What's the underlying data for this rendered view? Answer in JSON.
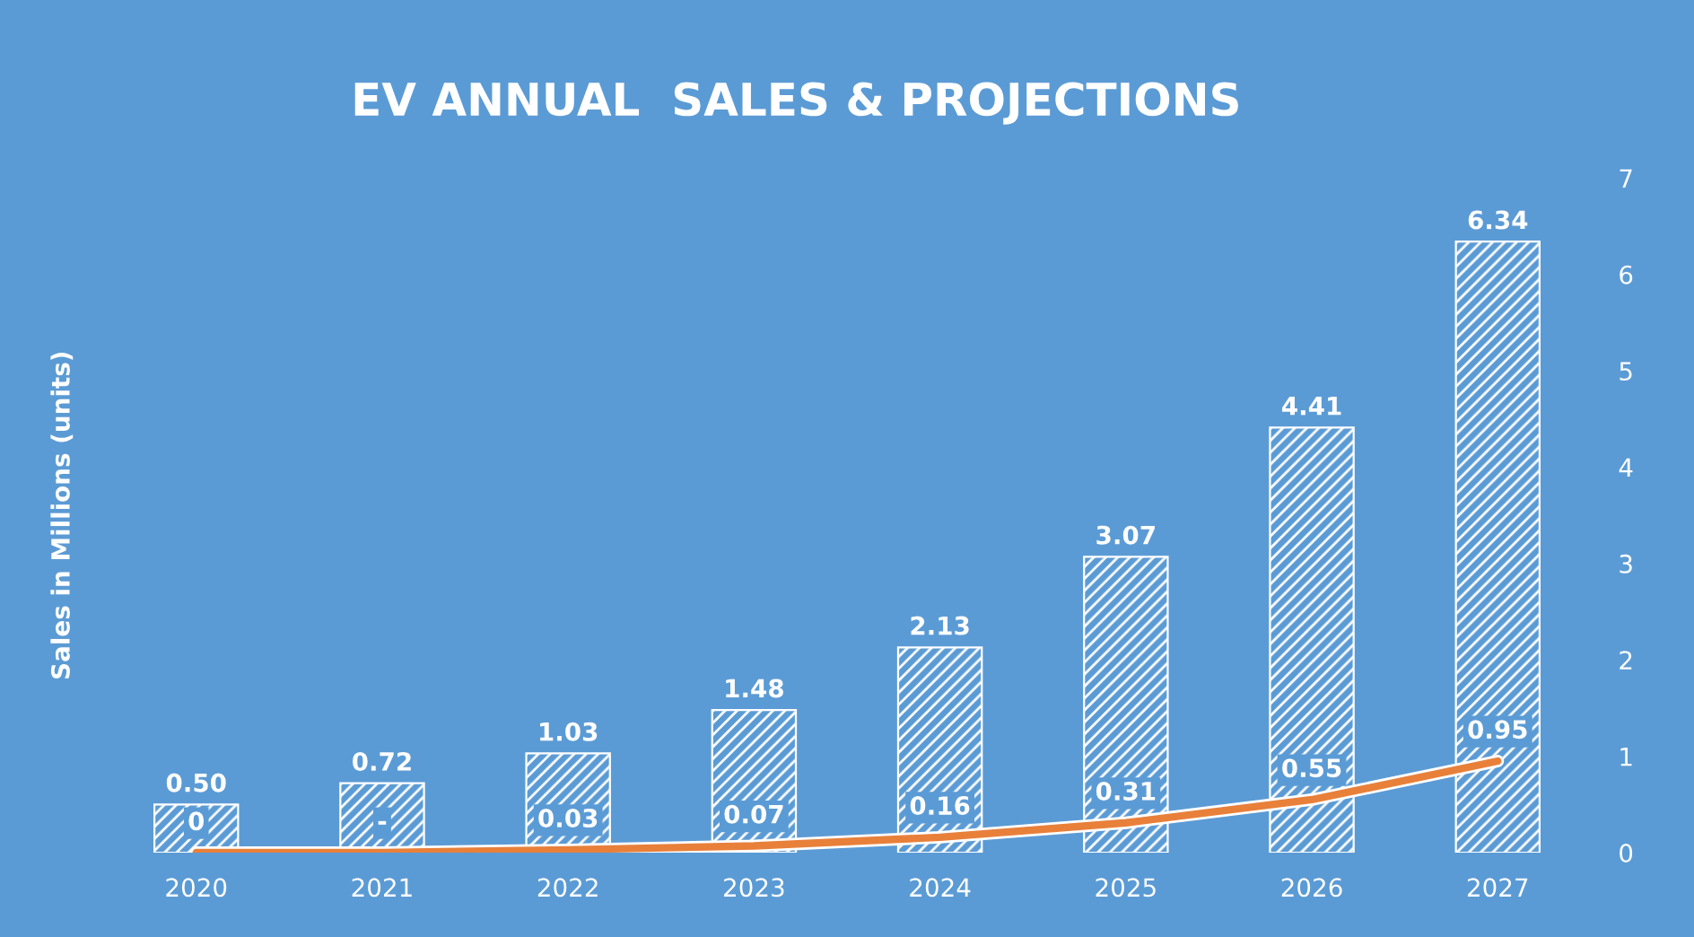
{
  "chart_data": {
    "type": "bar",
    "title": "EV ANNUAL  SALES & PROJECTIONS",
    "ylabel": "Sales in Millions (units)",
    "categories": [
      "2020",
      "2021",
      "2022",
      "2023",
      "2024",
      "2025",
      "2026",
      "2027"
    ],
    "series": [
      {
        "color": "#ffffff",
        "values": [
          0.5,
          0.72,
          1.03,
          1.48,
          2.13,
          3.07,
          4.41,
          6.34
        ],
        "value_labels": [
          "0.50",
          "0.72",
          "1.03",
          "1.48",
          "2.13",
          "3.07",
          "4.41",
          "6.34"
        ]
      },
      {
        "type": "line",
        "color": "#e8803a",
        "values": [
          0,
          0,
          0.03,
          0.07,
          0.16,
          0.31,
          0.55,
          0.95
        ],
        "value_labels": [
          "0",
          "-",
          "0.03",
          "0.07",
          "0.16",
          "0.31",
          "0.55",
          "0.95"
        ]
      }
    ],
    "ylim": [
      0,
      7
    ],
    "yticks": [
      0,
      1,
      2,
      3,
      4,
      5,
      6,
      7
    ],
    "grid": false,
    "legend": false
  }
}
